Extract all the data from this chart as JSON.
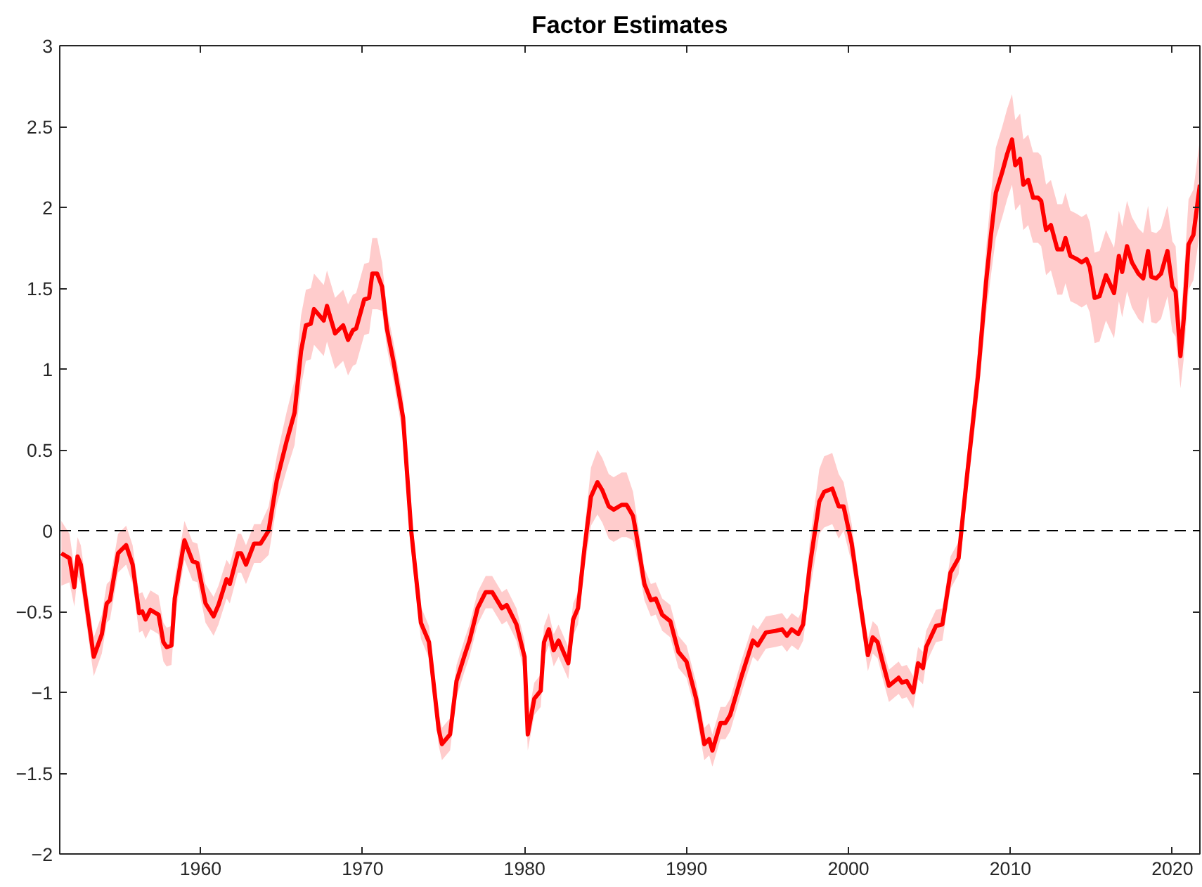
{
  "chart_data": {
    "type": "line",
    "title": "Factor Estimates",
    "xlim": [
      1951.3,
      2021.7
    ],
    "ylim": [
      -2,
      3
    ],
    "xticks": [
      1960,
      1970,
      1980,
      1990,
      2000,
      2010,
      2020
    ],
    "yticks": [
      -2,
      -1.5,
      -1,
      -0.5,
      0,
      0.5,
      1,
      1.5,
      2,
      2.5,
      3
    ],
    "line_style": "solid",
    "ref_lines": [
      {
        "axis": "y",
        "value": 0,
        "color": "#000000",
        "line_style": "dashed"
      }
    ],
    "series": [
      {
        "color": "#ff0000",
        "x": [
          1951.4,
          1951.9,
          1952.2,
          1952.4,
          1952.6,
          1953.4,
          1953.9,
          1954.2,
          1954.4,
          1954.9,
          1955.4,
          1955.8,
          1956.2,
          1956.4,
          1956.6,
          1956.9,
          1957.4,
          1957.7,
          1957.9,
          1958.2,
          1958.4,
          1959.0,
          1959.5,
          1959.8,
          1960.3,
          1960.8,
          1961.1,
          1961.6,
          1961.8,
          1962.3,
          1962.5,
          1962.8,
          1963.3,
          1963.7,
          1964.2,
          1964.7,
          1965.3,
          1965.8,
          1966.2,
          1966.5,
          1966.8,
          1967.0,
          1967.6,
          1967.8,
          1968.3,
          1968.8,
          1969.1,
          1969.4,
          1969.6,
          1970.1,
          1970.4,
          1970.6,
          1970.9,
          1971.2,
          1971.5,
          1971.9,
          1972.5,
          1973.0,
          1973.6,
          1974.1,
          1974.7,
          1974.9,
          1975.4,
          1975.8,
          1976.3,
          1976.6,
          1977.1,
          1977.6,
          1978.0,
          1978.6,
          1978.9,
          1979.5,
          1980.0,
          1980.2,
          1980.6,
          1981.0,
          1981.2,
          1981.5,
          1981.8,
          1982.1,
          1982.7,
          1983.0,
          1983.3,
          1983.7,
          1984.1,
          1984.5,
          1984.8,
          1985.2,
          1985.5,
          1986.0,
          1986.3,
          1986.7,
          1987.0,
          1987.4,
          1987.8,
          1988.1,
          1988.5,
          1989.0,
          1989.5,
          1990.0,
          1990.6,
          1991.1,
          1991.4,
          1991.6,
          1992.1,
          1992.4,
          1992.7,
          1993.4,
          1994.1,
          1994.4,
          1994.9,
          1995.5,
          1995.9,
          1996.2,
          1996.5,
          1996.9,
          1997.2,
          1997.6,
          1998.2,
          1998.5,
          1999.0,
          1999.4,
          1999.7,
          2000.2,
          2000.7,
          2001.2,
          2001.5,
          2001.8,
          2002.1,
          2002.5,
          2003.1,
          2003.3,
          2003.6,
          2004.0,
          2004.3,
          2004.6,
          2004.8,
          2005.4,
          2005.8,
          2006.3,
          2006.8,
          2007.3,
          2008.0,
          2008.5,
          2008.8,
          2009.1,
          2009.5,
          2009.8,
          2010.1,
          2010.3,
          2010.6,
          2010.8,
          2011.1,
          2011.4,
          2011.7,
          2011.9,
          2012.2,
          2012.5,
          2012.9,
          2013.2,
          2013.4,
          2013.7,
          2014.1,
          2014.4,
          2014.7,
          2014.9,
          2015.2,
          2015.5,
          2015.9,
          2016.4,
          2016.7,
          2016.9,
          2017.2,
          2017.5,
          2017.9,
          2018.2,
          2018.5,
          2018.7,
          2019.0,
          2019.3,
          2019.7,
          2020.0,
          2020.2,
          2020.5,
          2020.7,
          2021.0,
          2021.3,
          2021.7
        ],
        "values": [
          -0.14,
          -0.17,
          -0.35,
          -0.16,
          -0.21,
          -0.78,
          -0.64,
          -0.45,
          -0.43,
          -0.14,
          -0.09,
          -0.21,
          -0.51,
          -0.5,
          -0.55,
          -0.49,
          -0.52,
          -0.69,
          -0.72,
          -0.71,
          -0.42,
          -0.06,
          -0.19,
          -0.2,
          -0.45,
          -0.53,
          -0.46,
          -0.3,
          -0.33,
          -0.14,
          -0.14,
          -0.21,
          -0.08,
          -0.08,
          0.0,
          0.31,
          0.55,
          0.73,
          1.11,
          1.27,
          1.28,
          1.37,
          1.3,
          1.39,
          1.22,
          1.27,
          1.18,
          1.24,
          1.25,
          1.43,
          1.44,
          1.59,
          1.59,
          1.51,
          1.25,
          1.05,
          0.7,
          0.0,
          -0.57,
          -0.69,
          -1.23,
          -1.32,
          -1.26,
          -0.93,
          -0.77,
          -0.68,
          -0.48,
          -0.38,
          -0.38,
          -0.48,
          -0.46,
          -0.58,
          -0.78,
          -1.26,
          -1.04,
          -0.99,
          -0.69,
          -0.61,
          -0.74,
          -0.68,
          -0.82,
          -0.55,
          -0.48,
          -0.11,
          0.21,
          0.3,
          0.25,
          0.15,
          0.13,
          0.16,
          0.16,
          0.09,
          -0.08,
          -0.33,
          -0.43,
          -0.42,
          -0.52,
          -0.56,
          -0.75,
          -0.81,
          -1.04,
          -1.32,
          -1.29,
          -1.36,
          -1.19,
          -1.19,
          -1.14,
          -0.9,
          -0.68,
          -0.71,
          -0.63,
          -0.62,
          -0.61,
          -0.65,
          -0.61,
          -0.64,
          -0.58,
          -0.23,
          0.18,
          0.24,
          0.26,
          0.15,
          0.15,
          -0.08,
          -0.43,
          -0.77,
          -0.66,
          -0.69,
          -0.81,
          -0.96,
          -0.91,
          -0.94,
          -0.93,
          -1.0,
          -0.82,
          -0.85,
          -0.72,
          -0.59,
          -0.58,
          -0.26,
          -0.17,
          0.32,
          0.96,
          1.54,
          1.83,
          2.09,
          2.22,
          2.33,
          2.42,
          2.26,
          2.3,
          2.14,
          2.17,
          2.06,
          2.06,
          2.04,
          1.86,
          1.89,
          1.74,
          1.74,
          1.81,
          1.7,
          1.68,
          1.66,
          1.68,
          1.63,
          1.44,
          1.45,
          1.58,
          1.47,
          1.7,
          1.6,
          1.76,
          1.66,
          1.59,
          1.56,
          1.73,
          1.57,
          1.56,
          1.59,
          1.73,
          1.51,
          1.48,
          1.08,
          1.31,
          1.77,
          1.83,
          2.14
        ],
        "lower": [
          -0.34,
          -0.32,
          -0.47,
          -0.28,
          -0.33,
          -0.9,
          -0.76,
          -0.57,
          -0.55,
          -0.26,
          -0.21,
          -0.33,
          -0.63,
          -0.62,
          -0.67,
          -0.61,
          -0.64,
          -0.81,
          -0.84,
          -0.83,
          -0.54,
          -0.18,
          -0.31,
          -0.32,
          -0.57,
          -0.65,
          -0.58,
          -0.42,
          -0.45,
          -0.26,
          -0.26,
          -0.33,
          -0.2,
          -0.2,
          -0.15,
          0.16,
          0.37,
          0.53,
          0.89,
          1.05,
          1.06,
          1.15,
          1.08,
          1.17,
          1.0,
          1.05,
          0.96,
          1.02,
          1.03,
          1.21,
          1.22,
          1.37,
          1.37,
          1.36,
          1.13,
          0.93,
          0.58,
          -0.12,
          -0.67,
          -0.79,
          -1.33,
          -1.42,
          -1.36,
          -1.03,
          -0.87,
          -0.78,
          -0.58,
          -0.48,
          -0.48,
          -0.58,
          -0.56,
          -0.68,
          -0.88,
          -1.36,
          -1.14,
          -1.09,
          -0.79,
          -0.71,
          -0.84,
          -0.78,
          -0.92,
          -0.65,
          -0.58,
          -0.23,
          0.03,
          0.1,
          0.05,
          -0.05,
          -0.07,
          -0.04,
          -0.04,
          -0.06,
          -0.2,
          -0.43,
          -0.53,
          -0.52,
          -0.62,
          -0.66,
          -0.85,
          -0.91,
          -1.14,
          -1.42,
          -1.39,
          -1.46,
          -1.29,
          -1.29,
          -1.24,
          -1.0,
          -0.78,
          -0.81,
          -0.73,
          -0.72,
          -0.71,
          -0.75,
          -0.71,
          -0.74,
          -0.68,
          -0.38,
          -0.02,
          0.02,
          0.04,
          -0.05,
          0.0,
          -0.2,
          -0.53,
          -0.87,
          -0.76,
          -0.79,
          -0.91,
          -1.06,
          -1.01,
          -1.04,
          -1.03,
          -1.1,
          -0.92,
          -0.95,
          -0.82,
          -0.69,
          -0.68,
          -0.36,
          -0.27,
          0.2,
          0.81,
          1.34,
          1.58,
          1.81,
          1.94,
          2.05,
          2.14,
          1.98,
          2.02,
          1.86,
          1.89,
          1.78,
          1.78,
          1.76,
          1.58,
          1.61,
          1.46,
          1.46,
          1.53,
          1.42,
          1.4,
          1.38,
          1.4,
          1.35,
          1.16,
          1.17,
          1.3,
          1.19,
          1.42,
          1.32,
          1.48,
          1.38,
          1.31,
          1.28,
          1.45,
          1.29,
          1.28,
          1.31,
          1.45,
          1.23,
          1.2,
          0.88,
          1.06,
          1.49,
          1.55,
          1.86
        ],
        "upper": [
          0.06,
          -0.02,
          -0.23,
          -0.04,
          -0.09,
          -0.66,
          -0.52,
          -0.33,
          -0.31,
          -0.02,
          0.03,
          -0.09,
          -0.39,
          -0.38,
          -0.43,
          -0.37,
          -0.4,
          -0.57,
          -0.6,
          -0.59,
          -0.3,
          0.06,
          -0.07,
          -0.08,
          -0.33,
          -0.41,
          -0.34,
          -0.18,
          -0.21,
          -0.02,
          -0.02,
          -0.09,
          0.04,
          0.04,
          0.15,
          0.46,
          0.73,
          0.93,
          1.33,
          1.49,
          1.5,
          1.59,
          1.52,
          1.61,
          1.44,
          1.49,
          1.4,
          1.46,
          1.47,
          1.65,
          1.66,
          1.81,
          1.81,
          1.66,
          1.37,
          1.17,
          0.82,
          0.12,
          -0.47,
          -0.59,
          -1.13,
          -1.22,
          -1.16,
          -0.83,
          -0.67,
          -0.58,
          -0.38,
          -0.28,
          -0.28,
          -0.38,
          -0.36,
          -0.48,
          -0.68,
          -1.16,
          -0.94,
          -0.89,
          -0.59,
          -0.51,
          -0.64,
          -0.58,
          -0.72,
          -0.45,
          -0.38,
          0.01,
          0.39,
          0.5,
          0.45,
          0.35,
          0.33,
          0.36,
          0.36,
          0.24,
          0.04,
          -0.23,
          -0.33,
          -0.32,
          -0.42,
          -0.46,
          -0.65,
          -0.71,
          -0.94,
          -1.22,
          -1.19,
          -1.26,
          -1.09,
          -1.09,
          -1.04,
          -0.8,
          -0.58,
          -0.61,
          -0.53,
          -0.52,
          -0.51,
          -0.55,
          -0.51,
          -0.54,
          -0.48,
          -0.08,
          0.38,
          0.46,
          0.48,
          0.35,
          0.3,
          0.04,
          -0.33,
          -0.67,
          -0.56,
          -0.59,
          -0.71,
          -0.86,
          -0.81,
          -0.84,
          -0.83,
          -0.9,
          -0.72,
          -0.75,
          -0.62,
          -0.49,
          -0.48,
          -0.16,
          -0.07,
          0.44,
          1.11,
          1.74,
          2.08,
          2.37,
          2.5,
          2.61,
          2.7,
          2.54,
          2.58,
          2.42,
          2.45,
          2.34,
          2.34,
          2.32,
          2.14,
          2.17,
          2.02,
          2.02,
          2.09,
          1.98,
          1.96,
          1.94,
          1.96,
          1.91,
          1.72,
          1.73,
          1.86,
          1.75,
          1.98,
          1.88,
          2.04,
          1.94,
          1.87,
          1.84,
          2.01,
          1.85,
          1.84,
          1.87,
          2.01,
          1.79,
          1.76,
          1.28,
          1.56,
          2.05,
          2.11,
          2.42
        ]
      }
    ]
  }
}
